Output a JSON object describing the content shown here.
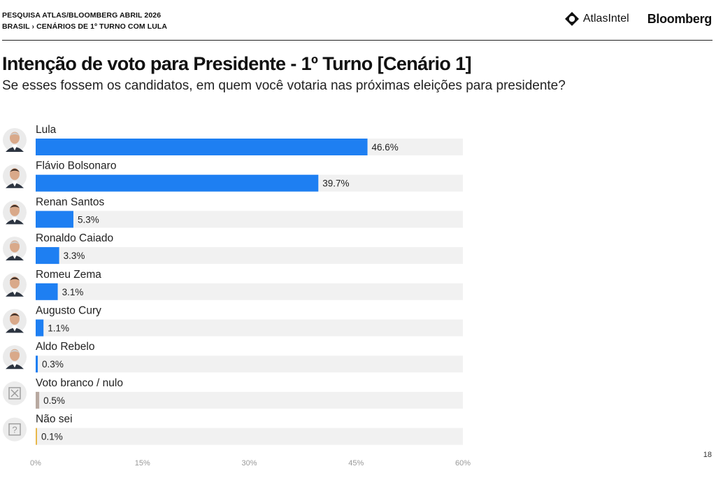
{
  "header": {
    "line1": "PESQUISA ATLAS/BLOOMBERG ABRIL 2026",
    "line2": "BRASIL › CENÁRIOS DE 1º TURNO COM LULA",
    "atlas_logo": "AtlasIntel",
    "bloomberg_logo": "Bloomberg"
  },
  "page_number": "18",
  "chart_data": {
    "type": "bar",
    "orientation": "horizontal",
    "title": "Intenção de voto para Presidente - 1º Turno [Cenário 1]",
    "subtitle": "Se esses fossem os candidatos, em quem você votaria nas próximas eleições para presidente?",
    "categories": [
      "Lula",
      "Flávio Bolsonaro",
      "Renan Santos",
      "Ronaldo Caiado",
      "Romeu Zema",
      "Augusto Cury",
      "Aldo Rebelo",
      "Voto branco / nulo",
      "Não sei"
    ],
    "values": [
      46.6,
      39.7,
      5.3,
      3.3,
      3.1,
      1.1,
      0.3,
      0.5,
      0.1
    ],
    "value_labels": [
      "46.6%",
      "39.7%",
      "5.3%",
      "3.3%",
      "3.1%",
      "1.1%",
      "0.3%",
      "0.5%",
      "0.1%"
    ],
    "icons": [
      "avatar",
      "avatar",
      "avatar",
      "avatar",
      "avatar",
      "avatar",
      "avatar",
      "x-box-icon",
      "question-box-icon"
    ],
    "bar_colors": [
      "#1e7ff2",
      "#1e7ff2",
      "#1e7ff2",
      "#1e7ff2",
      "#1e7ff2",
      "#1e7ff2",
      "#1e7ff2",
      "#b8a9a0",
      "#e8b84a"
    ],
    "track_color": "#f1f1f1",
    "xlim": [
      0,
      60
    ],
    "xticks": [
      0,
      15,
      30,
      45,
      60
    ],
    "xtick_labels": [
      "0%",
      "15%",
      "30%",
      "45%",
      "60%"
    ],
    "grid": false,
    "legend": false
  }
}
